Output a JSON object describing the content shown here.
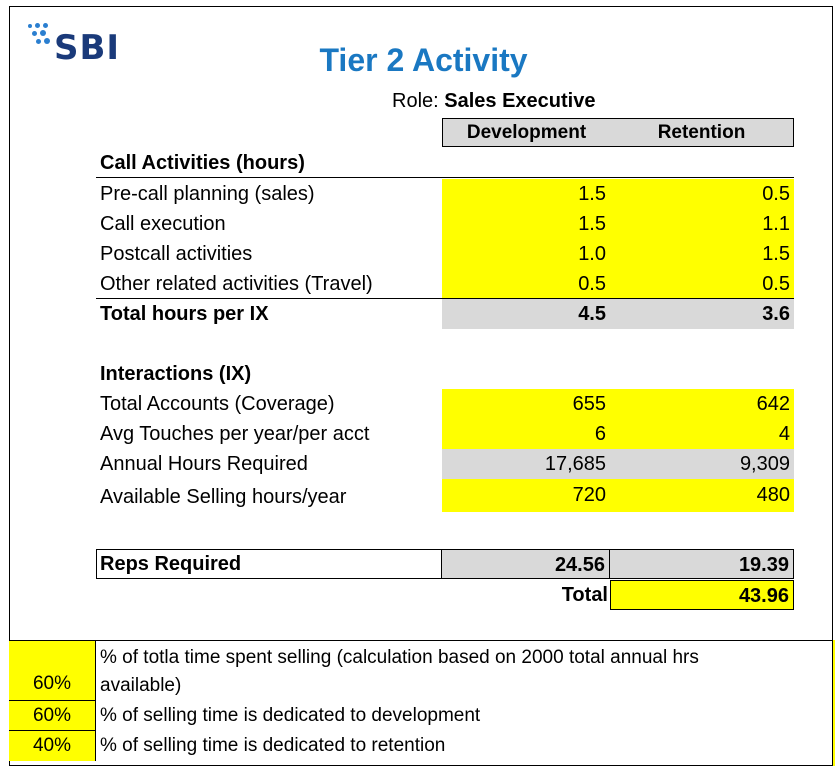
{
  "logo": {
    "text": "SBI"
  },
  "title": "Tier 2 Activity",
  "role": {
    "label": "Role:",
    "value": "Sales Executive"
  },
  "columns": {
    "development": "Development",
    "retention": "Retention"
  },
  "call_activities": {
    "heading": "Call Activities (hours)",
    "rows": [
      {
        "label": "Pre-call planning (sales)",
        "dev": "1.5",
        "ret": "0.5"
      },
      {
        "label": "Call execution",
        "dev": "1.5",
        "ret": "1.1"
      },
      {
        "label": "Postcall activities",
        "dev": "1.0",
        "ret": "1.5"
      },
      {
        "label": "Other related activities (Travel)",
        "dev": "0.5",
        "ret": "0.5"
      }
    ],
    "total": {
      "label": "Total hours per IX",
      "dev": "4.5",
      "ret": "3.6"
    }
  },
  "interactions": {
    "heading": "Interactions (IX)",
    "rows": [
      {
        "label": "Total Accounts (Coverage)",
        "dev": "655",
        "ret": "642"
      },
      {
        "label": "Avg Touches per year/per acct",
        "dev": "6",
        "ret": "4"
      },
      {
        "label": "Annual Hours Required",
        "dev": "17,685",
        "ret": "9,309"
      },
      {
        "label": "Available Selling hours/year",
        "dev": "720",
        "ret": "480"
      }
    ]
  },
  "reps": {
    "label": "Reps Required",
    "dev": "24.56",
    "ret": "19.39"
  },
  "total": {
    "label": "Total",
    "value": "43.96"
  },
  "notes": [
    {
      "pct": "60%",
      "line1": "% of totla time spent selling (calculation based on 2000 total annual hrs",
      "line2": "available)"
    },
    {
      "pct": "60%",
      "line1": "% of selling time is dedicated to development"
    },
    {
      "pct": "40%",
      "line1": "% of selling time is dedicated to retention"
    }
  ]
}
